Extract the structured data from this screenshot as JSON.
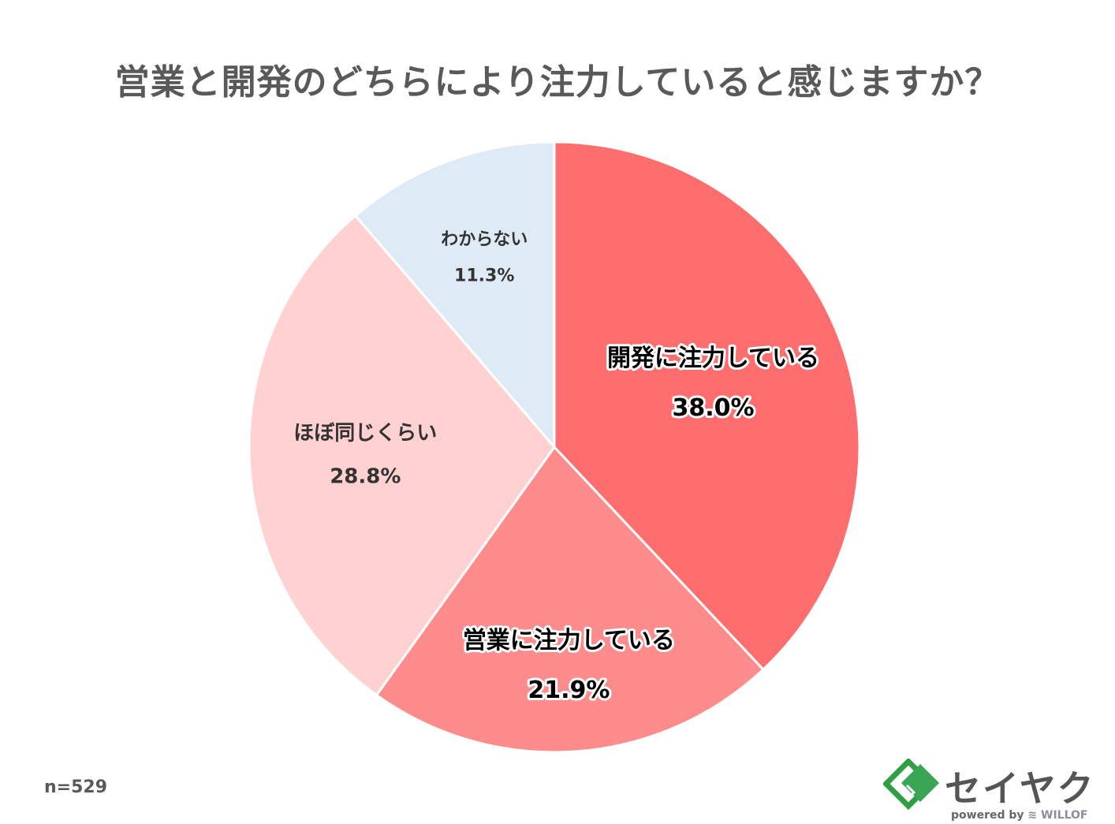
{
  "title": "営業と開発のどちらにより注力していると感じますか？",
  "sample_size": "n=529",
  "brand": {
    "name": "セイヤク",
    "powered_by": "powered by",
    "sub_brand": "WILLOF",
    "logo_icon": "handshake-diamond-icon"
  },
  "colors": {
    "dev": "#ff6e6e",
    "sales": "#ff8c8c",
    "same": "#ffd1d1",
    "unknown": "#deebf7",
    "title": "#595959"
  },
  "chart_data": {
    "type": "pie",
    "title": "営業と開発のどちらにより注力していると感じますか？",
    "start": "12 o'clock, clockwise",
    "slices": [
      {
        "label": "開発に注力している",
        "value": 38.0,
        "value_label": "38.0%",
        "color": "#ff6e6e"
      },
      {
        "label": "営業に注力している",
        "value": 21.9,
        "value_label": "21.9%",
        "color": "#ff8c8c"
      },
      {
        "label": "ほぼ同じくらい",
        "value": 28.8,
        "value_label": "28.8%",
        "color": "#ffd1d1"
      },
      {
        "label": "わからない",
        "value": 11.3,
        "value_label": "11.3%",
        "color": "#deebf7"
      }
    ]
  }
}
